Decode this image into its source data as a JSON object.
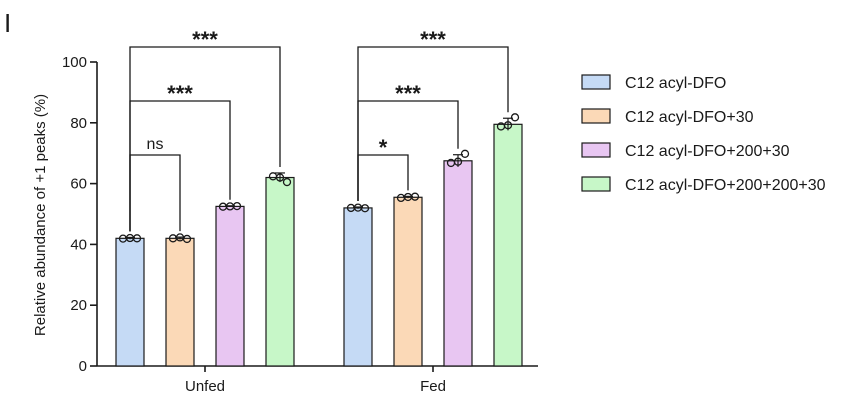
{
  "panel_label": "I",
  "chart_data": {
    "type": "bar",
    "title": "",
    "xlabel": "",
    "ylabel": "Relative abundance of +1 peaks (%)",
    "ylim": [
      0,
      100
    ],
    "yticks": [
      0,
      20,
      40,
      60,
      80,
      100
    ],
    "groups": [
      "Unfed",
      "Fed"
    ],
    "series": [
      {
        "name": "C12 acyl-DFO",
        "color": "#c5daf5",
        "values": [
          42,
          52
        ],
        "points": [
          [
            41.9,
            42.1,
            42.0
          ],
          [
            52.0,
            52.1,
            51.9
          ]
        ],
        "err": [
          0.3,
          0.3
        ]
      },
      {
        "name": "C12 acyl-DFO+30",
        "color": "#fbd9b7",
        "values": [
          42,
          55.5
        ],
        "points": [
          [
            42.0,
            42.3,
            41.8
          ],
          [
            55.3,
            55.6,
            55.7
          ]
        ],
        "err": [
          0.4,
          0.3
        ]
      },
      {
        "name": "C12 acyl-DFO+200+30",
        "color": "#e8c6f2",
        "values": [
          52.5,
          67.5
        ],
        "points": [
          [
            52.4,
            52.5,
            52.6
          ],
          [
            66.8,
            67.2,
            69.8
          ]
        ],
        "err": [
          0.2,
          2.0
        ]
      },
      {
        "name": "C12 acyl-DFO+200+200+30",
        "color": "#c7f7c8",
        "values": [
          62,
          79.5
        ],
        "points": [
          [
            62.4,
            62.0,
            60.5
          ],
          [
            78.8,
            79.2,
            81.8
          ]
        ],
        "err": [
          1.5,
          2.0
        ]
      }
    ],
    "significance": [
      {
        "group": 0,
        "from": 0,
        "to": 1,
        "label": "ns",
        "level": 1
      },
      {
        "group": 0,
        "from": 0,
        "to": 2,
        "label": "***",
        "level": 2
      },
      {
        "group": 0,
        "from": 0,
        "to": 3,
        "label": "***",
        "level": 3
      },
      {
        "group": 1,
        "from": 0,
        "to": 1,
        "label": "*",
        "level": 1
      },
      {
        "group": 1,
        "from": 0,
        "to": 2,
        "label": "***",
        "level": 2
      },
      {
        "group": 1,
        "from": 0,
        "to": 3,
        "label": "***",
        "level": 3
      }
    ],
    "legend_position": "right"
  }
}
